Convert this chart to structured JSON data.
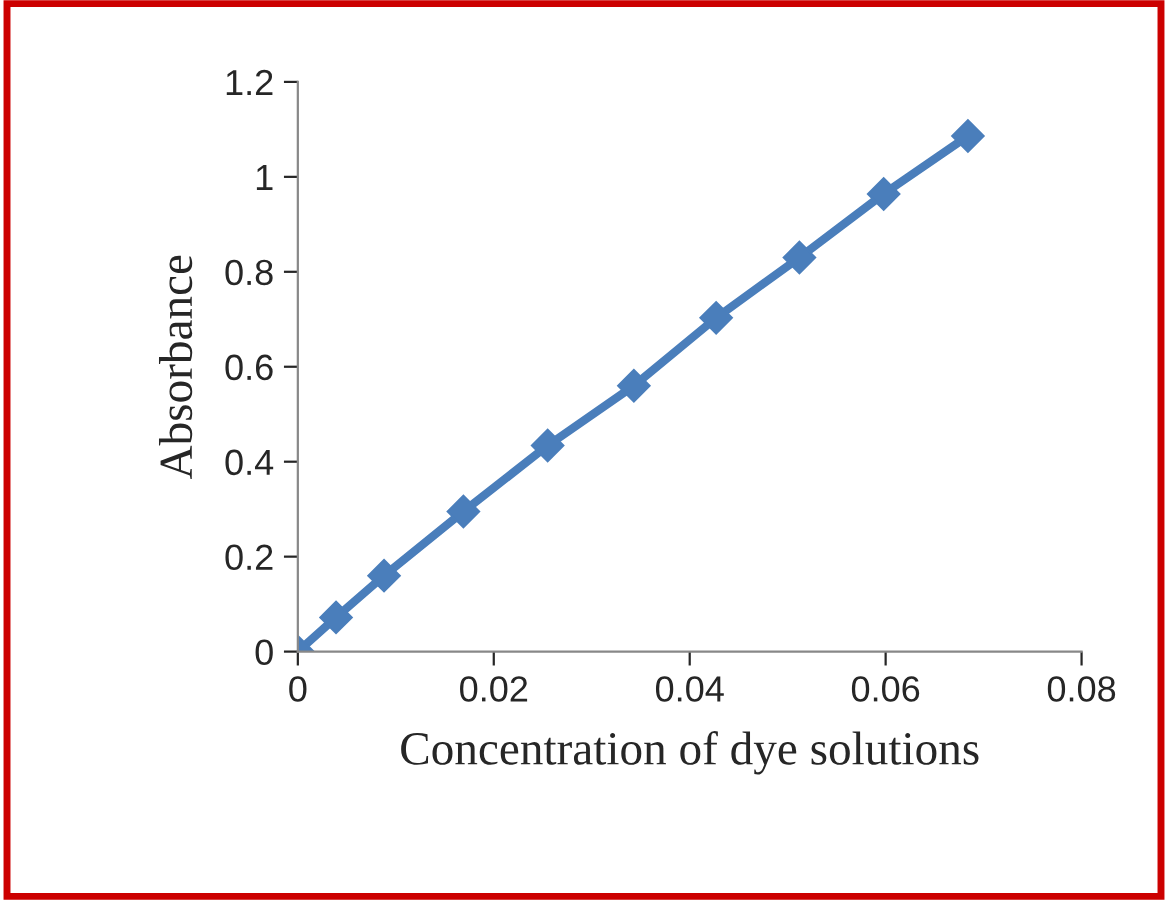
{
  "chart_data": {
    "type": "line",
    "xlabel": "Concentration of dye solutions",
    "ylabel": "Absorbance",
    "x": [
      0,
      0.0039,
      0.0088,
      0.0169,
      0.0255,
      0.0343,
      0.0427,
      0.0512,
      0.0598,
      0.0684
    ],
    "series": [
      {
        "color": "#4a7ebb",
        "values": [
          0,
          0.072,
          0.16,
          0.295,
          0.434,
          0.56,
          0.703,
          0.83,
          0.964,
          1.086
        ]
      }
    ],
    "xlim": [
      0,
      0.08
    ],
    "xticks": [
      0,
      0.02,
      0.04,
      0.06,
      0.08
    ],
    "ylim": [
      0,
      1.2
    ],
    "yticks": [
      0,
      0.2,
      0.4,
      0.6,
      0.8,
      1,
      1.2
    ],
    "marker": "diamond",
    "line_style": "solid",
    "grid": false,
    "legend": false
  }
}
